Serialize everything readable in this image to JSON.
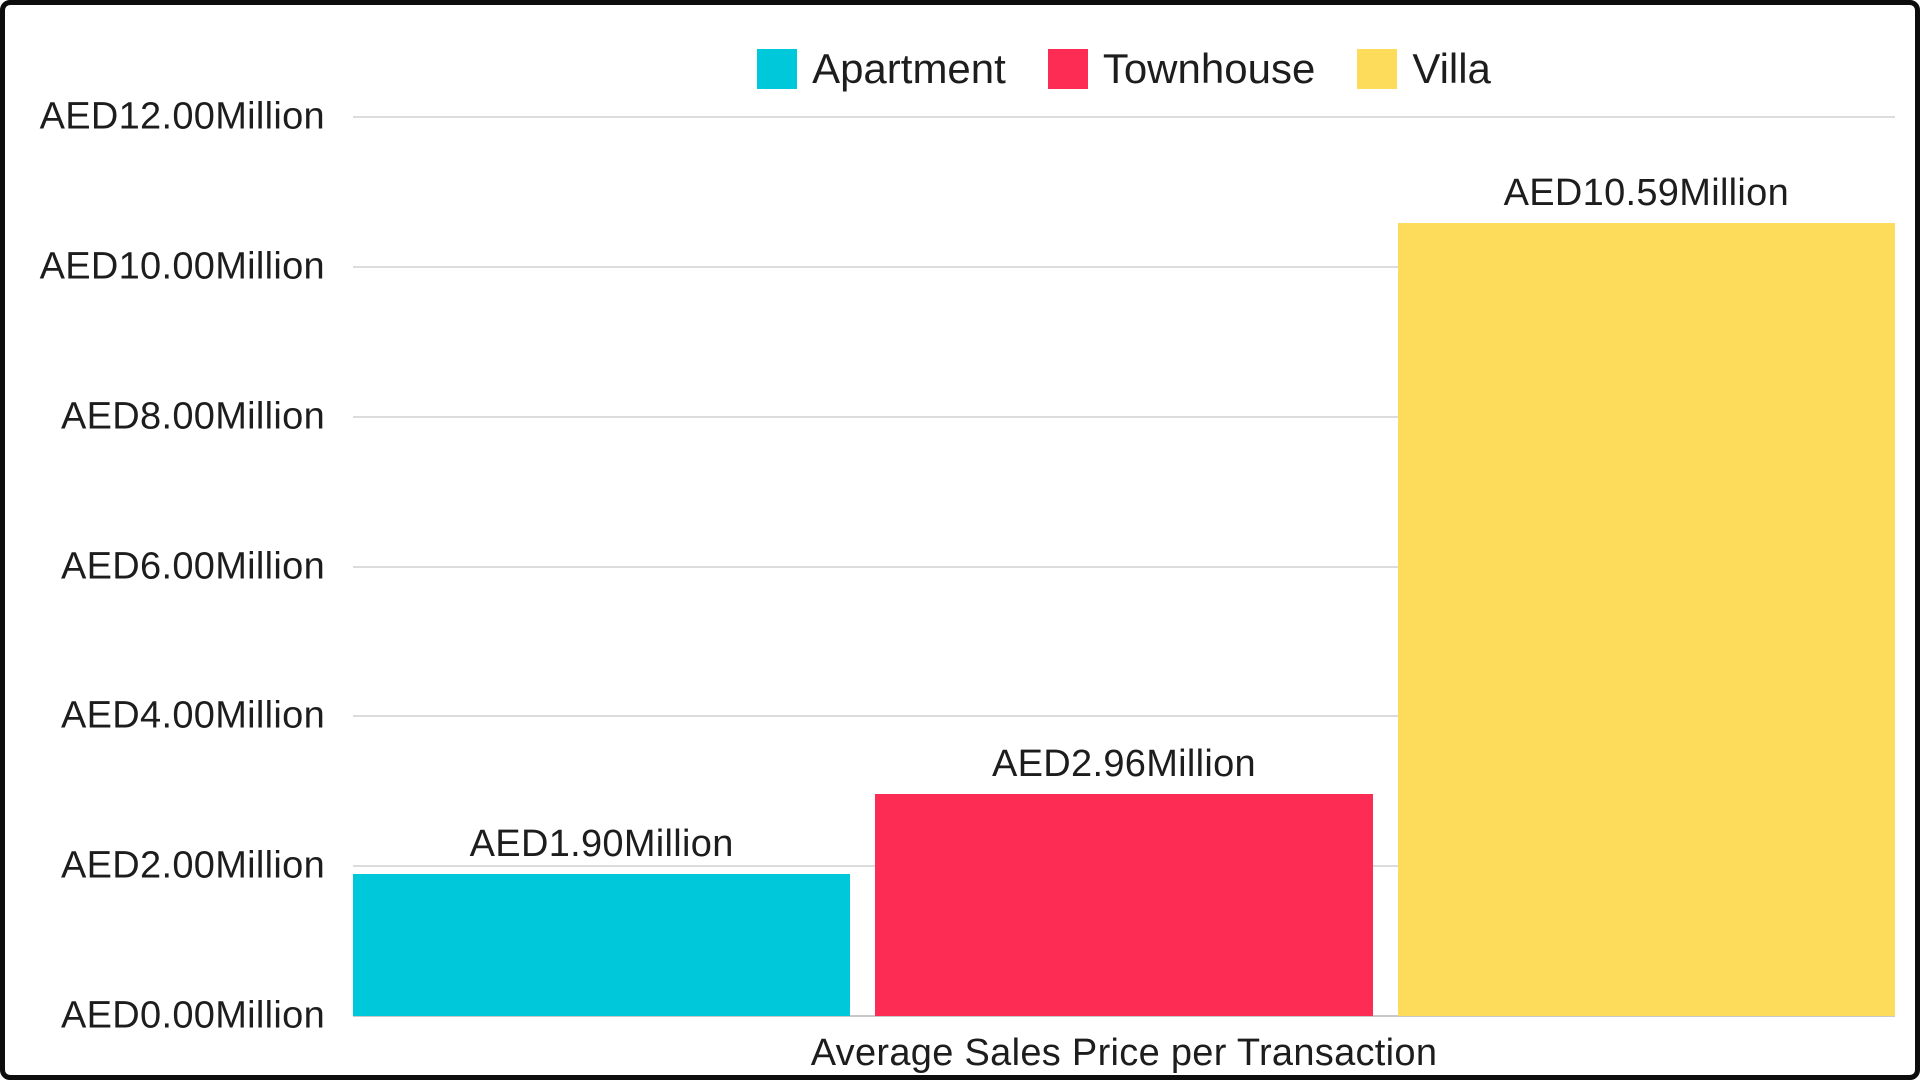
{
  "chart_data": {
    "type": "bar",
    "title": "Average Sales Price per Transaction",
    "categories": [
      "Apartment",
      "Townhouse",
      "Villa"
    ],
    "values": [
      1.9,
      2.96,
      10.59
    ],
    "ylim": [
      0,
      12
    ],
    "grid": true,
    "legend_position": "top-center",
    "bars": [
      {
        "category": "Apartment",
        "value": 1.9,
        "label": "AED1.90Million",
        "color": "#00C8DB"
      },
      {
        "category": "Townhouse",
        "value": 2.96,
        "label": "AED2.96Million",
        "color": "#FC2C55"
      },
      {
        "category": "Villa",
        "value": 10.59,
        "label": "AED10.59Million",
        "color": "#FDDC5B"
      }
    ],
    "y_ticks": [
      {
        "value": 12,
        "label": "AED12.00Million"
      },
      {
        "value": 10,
        "label": "AED10.00Million"
      },
      {
        "value": 8,
        "label": "AED8.00Million"
      },
      {
        "value": 6,
        "label": "AED6.00Million"
      },
      {
        "value": 4,
        "label": "AED4.00Million"
      },
      {
        "value": 2,
        "label": "AED2.00Million"
      },
      {
        "value": 0,
        "label": "AED0.00Million"
      }
    ],
    "legend": [
      {
        "label": "Apartment",
        "color": "#00C8DB"
      },
      {
        "label": "Townhouse",
        "color": "#FC2C55"
      },
      {
        "label": "Villa",
        "color": "#FDDC5B"
      }
    ]
  },
  "colors": {
    "text": "#1D1D1D",
    "gridline": "#DCDCDC",
    "axis_line": "#C9C9C9",
    "background": "#FFFFFF",
    "frame_border": "#0D0D0D"
  }
}
